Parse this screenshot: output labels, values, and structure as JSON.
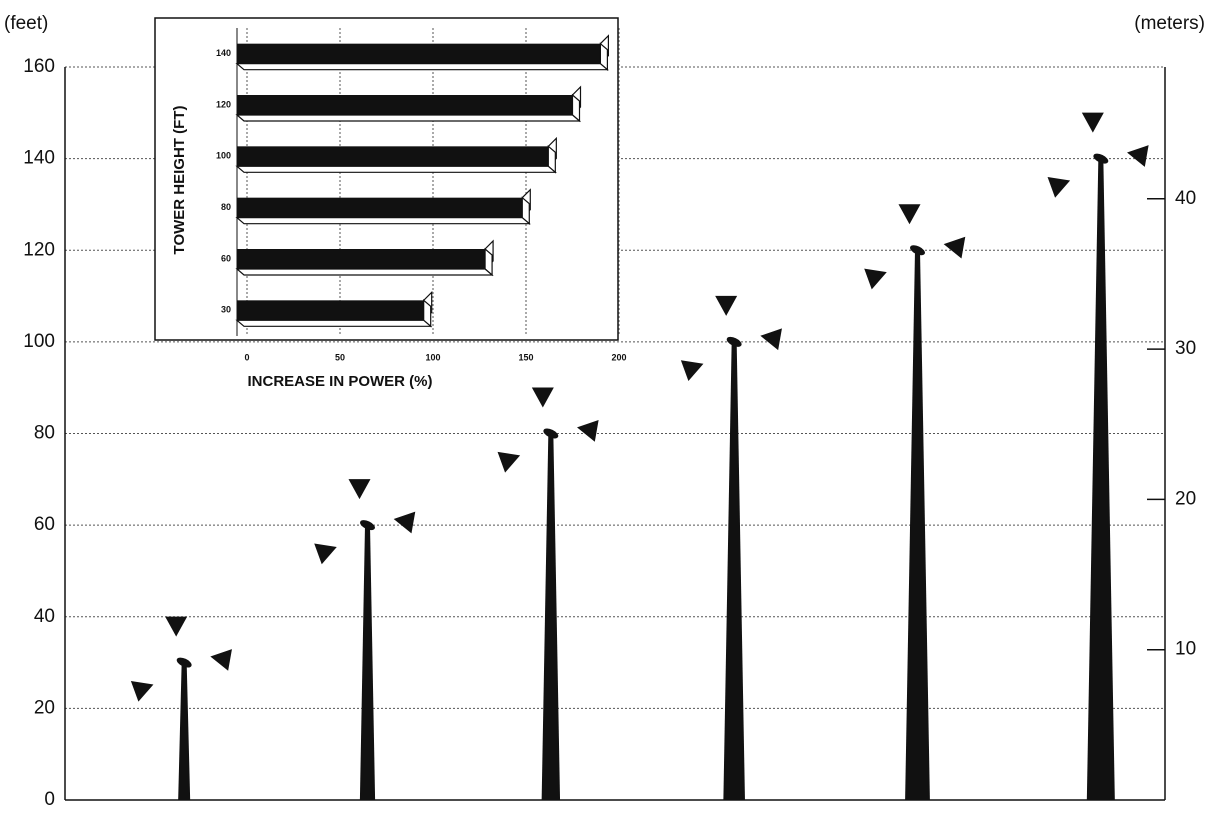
{
  "chart_data": [
    {
      "type": "turbine",
      "ylabel": "(feet)",
      "y2label": "(meters)",
      "categories": [
        null,
        null,
        null,
        null,
        null,
        null
      ],
      "values": [
        30,
        60,
        80,
        100,
        120,
        140
      ],
      "color": "#111111",
      "ylim": [
        0,
        160
      ],
      "yticks": [
        0,
        20,
        40,
        60,
        80,
        100,
        120,
        140,
        160
      ],
      "y2lim": [
        0,
        48.768
      ],
      "y2ticks": [
        10,
        20,
        30,
        40
      ],
      "grid": true
    },
    {
      "type": "barh",
      "xlabel": "INCREASE IN POWER (%)",
      "ylabel": "TOWER HEIGHT (FT)",
      "categories": [
        "30",
        "60",
        "80",
        "100",
        "120",
        "140"
      ],
      "values": [
        95,
        128,
        148,
        162,
        175,
        190
      ],
      "color": "#111111",
      "xlim": [
        0,
        200
      ],
      "xticks": [
        0,
        50,
        100,
        150,
        200
      ],
      "grid": true
    }
  ]
}
